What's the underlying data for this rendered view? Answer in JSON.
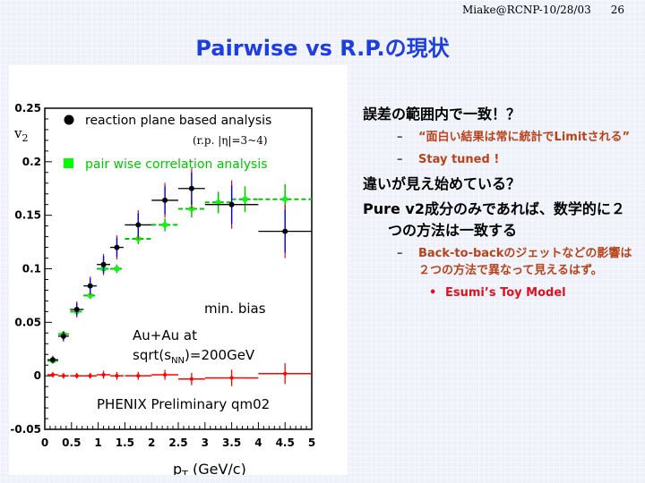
{
  "header": {
    "credit": "Miake@RCNP-10/28/03",
    "page": "26"
  },
  "title": "Pairwise vs R.P.の現状",
  "plot": {
    "experiment_label": "PHENIX Preliminary qm02",
    "system_label": "Au+Au at",
    "energy_label_prefix": "sqrt(s",
    "energy_label_sub": "NN",
    "energy_label_suffix": ")=200GeV",
    "centrality_label": "min. bias",
    "ylabel_main": "v",
    "ylabel_sub": "2",
    "xlabel_main": "p",
    "xlabel_sub": "T",
    "xlabel_rest": " (GeV/c)",
    "legend": {
      "rp_label": "reaction plane based analysis",
      "rp_sublabel": "(r.p. |η|=3~4)",
      "pw_label": "pair wise correlation analysis"
    },
    "x_ticks": [
      "0",
      "0.5",
      "1",
      "1.5",
      "2",
      "2.5",
      "3",
      "3.5",
      "4",
      "4.5",
      "5"
    ],
    "y_ticks": [
      "-0.05",
      "0",
      "0.05",
      "0.1",
      "0.15",
      "0.2",
      "0.25"
    ],
    "colors": {
      "reaction_plane": "#000000",
      "pair_wise": "#00c800",
      "difference": "#ff0000",
      "rp_errors": "#0000ff"
    }
  },
  "chart_data": {
    "type": "scatter",
    "title": "",
    "xlabel": "pT (GeV/c)",
    "ylabel": "v2",
    "xlim": [
      0,
      5
    ],
    "ylim": [
      -0.05,
      0.25
    ],
    "series": [
      {
        "name": "reaction plane based analysis",
        "color": "#000000",
        "marker": "circle",
        "x": [
          0.15,
          0.35,
          0.6,
          0.85,
          1.1,
          1.35,
          1.75,
          2.25,
          2.75,
          3.5,
          4.5
        ],
        "y": [
          0.015,
          0.037,
          0.062,
          0.084,
          0.104,
          0.12,
          0.141,
          0.164,
          0.175,
          0.16,
          0.135
        ],
        "xerr": [
          0.1,
          0.1,
          0.125,
          0.125,
          0.125,
          0.125,
          0.25,
          0.25,
          0.25,
          0.5,
          0.5
        ],
        "yerr": [
          0.003,
          0.004,
          0.006,
          0.007,
          0.008,
          0.009,
          0.011,
          0.013,
          0.015,
          0.018,
          0.02
        ]
      },
      {
        "name": "pair wise correlation analysis",
        "color": "#00c800",
        "marker": "square",
        "x": [
          0.15,
          0.35,
          0.6,
          0.85,
          1.1,
          1.35,
          1.75,
          2.25,
          2.75,
          3.25,
          3.75,
          4.5
        ],
        "y": [
          0.014,
          0.039,
          0.06,
          0.075,
          0.1,
          0.1,
          0.128,
          0.141,
          0.156,
          0.162,
          0.165,
          0.165
        ],
        "xerr": [
          0.1,
          0.1,
          0.125,
          0.125,
          0.125,
          0.125,
          0.25,
          0.25,
          0.25,
          0.25,
          0.25,
          0.5
        ],
        "yerr": [
          0.002,
          0.002,
          0.003,
          0.003,
          0.004,
          0.004,
          0.005,
          0.006,
          0.008,
          0.01,
          0.012,
          0.014
        ]
      },
      {
        "name": "",
        "color": "#ff0000",
        "marker": "point",
        "x": [
          0.15,
          0.35,
          0.6,
          0.85,
          1.1,
          1.35,
          1.75,
          2.25,
          2.75,
          3.5,
          4.5
        ],
        "y": [
          0.001,
          0.0,
          0.0,
          0.0,
          0.001,
          0.0,
          0.0,
          0.001,
          -0.003,
          -0.002,
          0.002
        ],
        "xerr": [
          0.1,
          0.1,
          0.125,
          0.125,
          0.125,
          0.125,
          0.25,
          0.25,
          0.25,
          0.5,
          0.5
        ],
        "yerr": [
          0.001,
          0.001,
          0.001,
          0.001,
          0.002,
          0.002,
          0.002,
          0.003,
          0.004,
          0.006,
          0.008
        ]
      }
    ]
  },
  "bullets": {
    "b1": "誤差の範囲内で一致！？",
    "b1_s1": "“面白い結果は常に統計でLimitされる”",
    "b1_s2": "Stay tuned !",
    "b2": "違いが見え始めている？",
    "b3": "Pure v2成分のみであれば、数学的に２つの方法は一致する",
    "b3_s1": "Back-to-backのジェットなどの影響は２つの方法で異なって見えるはず。",
    "b3_s1_sub": "Esumi’s Toy Model"
  }
}
